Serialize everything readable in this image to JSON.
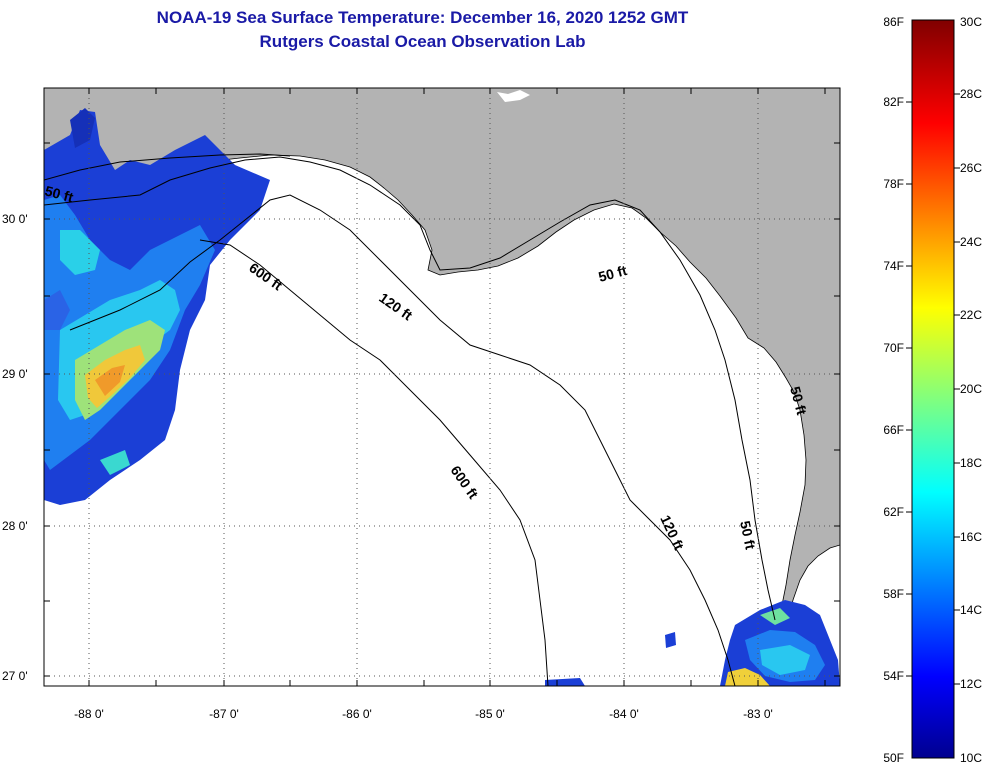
{
  "title": "NOAA-19 Sea Surface Temperature:  December 16, 2020 1252 GMT",
  "subtitle": "Rutgers Coastal Ocean Observation Lab",
  "map": {
    "lat_labels": [
      "30 0'",
      "29 0'",
      "28 0'",
      "27 0'"
    ],
    "lon_labels": [
      "-88 0'",
      "-87 0'",
      "-86 0'",
      "-85 0'",
      "-84 0'",
      "-83 0'"
    ],
    "contour_labels": [
      "50 ft",
      "600 ft",
      "120 ft",
      "50 ft",
      "600 ft",
      "120 ft",
      "50 ft",
      "50 ft"
    ],
    "land_color": "#b3b3b3",
    "no_data_color": "#ffffff"
  },
  "colorbar": {
    "f_labels": [
      "86F",
      "82F",
      "78F",
      "74F",
      "70F",
      "66F",
      "62F",
      "58F",
      "54F",
      "50F"
    ],
    "c_labels": [
      "30C",
      "28C",
      "26C",
      "24C",
      "22C",
      "20C",
      "18C",
      "16C",
      "14C",
      "12C",
      "10C"
    ],
    "range_c": [
      10,
      30
    ],
    "range_f": [
      50,
      86
    ]
  }
}
